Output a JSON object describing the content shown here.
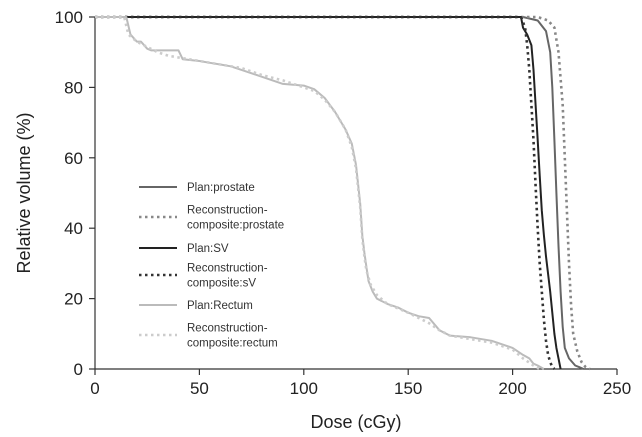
{
  "chart_data": {
    "type": "line",
    "xlabel": "Dose (cGy)",
    "ylabel": "Relative volume (%)",
    "xlim": [
      0,
      250
    ],
    "ylim": [
      0,
      100
    ],
    "xticks": [
      "0",
      "50",
      "100",
      "150",
      "200",
      "250"
    ],
    "yticks": [
      "0",
      "20",
      "40",
      "60",
      "80",
      "100"
    ],
    "grid": false,
    "legend_position": "center-left",
    "series": [
      {
        "name": "Plan:prostate",
        "line_style": "solid",
        "color": "#666666",
        "points": [
          [
            0,
            100
          ],
          [
            205,
            100
          ],
          [
            212,
            99
          ],
          [
            216,
            96
          ],
          [
            218,
            90
          ],
          [
            219,
            80
          ],
          [
            220,
            65
          ],
          [
            221,
            50
          ],
          [
            222,
            35
          ],
          [
            223,
            22
          ],
          [
            224,
            12
          ],
          [
            225,
            6
          ],
          [
            227,
            3
          ],
          [
            230,
            1
          ],
          [
            232,
            0.5
          ],
          [
            234,
            0
          ]
        ]
      },
      {
        "name": "Reconstruction-\ncomposite:prostate",
        "line_style": "dotted",
        "color": "#888888",
        "points": [
          [
            0,
            100
          ],
          [
            212,
            100
          ],
          [
            217,
            99
          ],
          [
            220,
            97
          ],
          [
            222,
            90
          ],
          [
            224,
            75
          ],
          [
            225,
            60
          ],
          [
            226,
            45
          ],
          [
            227,
            30
          ],
          [
            228,
            18
          ],
          [
            229,
            10
          ],
          [
            231,
            5
          ],
          [
            233,
            2
          ],
          [
            235,
            0.5
          ],
          [
            237,
            0
          ]
        ]
      },
      {
        "name": "Plan:SV",
        "line_style": "solid",
        "color": "#222222",
        "points": [
          [
            0,
            100
          ],
          [
            204,
            100
          ],
          [
            205,
            97
          ],
          [
            207,
            95
          ],
          [
            209,
            92
          ],
          [
            210,
            85
          ],
          [
            211,
            75
          ],
          [
            212,
            65
          ],
          [
            213,
            55
          ],
          [
            214,
            45
          ],
          [
            215,
            38
          ],
          [
            216,
            32
          ],
          [
            217,
            27
          ],
          [
            218,
            22
          ],
          [
            219,
            16
          ],
          [
            220,
            10
          ],
          [
            221,
            6
          ],
          [
            222,
            3
          ],
          [
            223,
            0
          ]
        ]
      },
      {
        "name": "Reconstruction-\ncomposite:sV",
        "line_style": "dotted",
        "color": "#333333",
        "points": [
          [
            0,
            100
          ],
          [
            204,
            100
          ],
          [
            206,
            97
          ],
          [
            207,
            92
          ],
          [
            208,
            85
          ],
          [
            209,
            75
          ],
          [
            210,
            65
          ],
          [
            211,
            52
          ],
          [
            212,
            40
          ],
          [
            213,
            30
          ],
          [
            214,
            22
          ],
          [
            215,
            14
          ],
          [
            216,
            8
          ],
          [
            217,
            4
          ],
          [
            218,
            2
          ],
          [
            219,
            0.5
          ],
          [
            220,
            0
          ]
        ]
      },
      {
        "name": "Plan:Rectum",
        "line_style": "solid",
        "color": "#bbbbbb",
        "points": [
          [
            0,
            100
          ],
          [
            15,
            100
          ],
          [
            17,
            95
          ],
          [
            20,
            93
          ],
          [
            22,
            93
          ],
          [
            25,
            91
          ],
          [
            27,
            90.5
          ],
          [
            35,
            90.5
          ],
          [
            40,
            90.5
          ],
          [
            42,
            88
          ],
          [
            50,
            87.5
          ],
          [
            55,
            87
          ],
          [
            60,
            86.5
          ],
          [
            65,
            86
          ],
          [
            70,
            85
          ],
          [
            80,
            83
          ],
          [
            90,
            81
          ],
          [
            100,
            80.5
          ],
          [
            105,
            79.5
          ],
          [
            110,
            77
          ],
          [
            115,
            73
          ],
          [
            118,
            70
          ],
          [
            120,
            68
          ],
          [
            123,
            64
          ],
          [
            125,
            58
          ],
          [
            127,
            47
          ],
          [
            128,
            38
          ],
          [
            129,
            33
          ],
          [
            130,
            29
          ],
          [
            131,
            25
          ],
          [
            133,
            22
          ],
          [
            135,
            20
          ],
          [
            140,
            18.5
          ],
          [
            145,
            17.5
          ],
          [
            150,
            16
          ],
          [
            155,
            15
          ],
          [
            160,
            14.5
          ],
          [
            165,
            11
          ],
          [
            170,
            9.5
          ],
          [
            180,
            9
          ],
          [
            190,
            8
          ],
          [
            200,
            6
          ],
          [
            205,
            4
          ],
          [
            208,
            3
          ],
          [
            210,
            1.5
          ],
          [
            212,
            1
          ],
          [
            215,
            0
          ]
        ]
      },
      {
        "name": "Reconstruction-\ncomposite:rectum",
        "line_style": "dotted",
        "color": "#cccccc",
        "points": [
          [
            0,
            100
          ],
          [
            14,
            100
          ],
          [
            16,
            95
          ],
          [
            20,
            93
          ],
          [
            25,
            91.5
          ],
          [
            30,
            90
          ],
          [
            35,
            89
          ],
          [
            40,
            88.5
          ],
          [
            45,
            88
          ],
          [
            50,
            87.5
          ],
          [
            60,
            86.5
          ],
          [
            70,
            85.5
          ],
          [
            80,
            83.5
          ],
          [
            90,
            82
          ],
          [
            100,
            80
          ],
          [
            105,
            79
          ],
          [
            110,
            76.5
          ],
          [
            115,
            73
          ],
          [
            118,
            70
          ],
          [
            120,
            68
          ],
          [
            123,
            63
          ],
          [
            125,
            57
          ],
          [
            127,
            46
          ],
          [
            128,
            37
          ],
          [
            129,
            32
          ],
          [
            130,
            28
          ],
          [
            132,
            24
          ],
          [
            135,
            21
          ],
          [
            140,
            18.5
          ],
          [
            150,
            16
          ],
          [
            160,
            13
          ],
          [
            165,
            11
          ],
          [
            170,
            9.5
          ],
          [
            180,
            8.5
          ],
          [
            190,
            7.5
          ],
          [
            200,
            5.5
          ],
          [
            205,
            3
          ],
          [
            210,
            1
          ],
          [
            213,
            0
          ]
        ]
      }
    ]
  }
}
